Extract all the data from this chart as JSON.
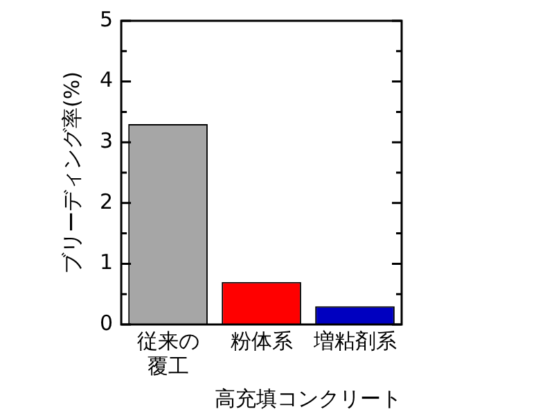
{
  "chart_data": {
    "type": "bar",
    "ylabel": "ブリーディング率(%)",
    "xlabel": "高充填コンクリート",
    "categories": [
      "従来の覆工",
      "粉体系",
      "増粘剤系"
    ],
    "values": [
      3.3,
      0.7,
      0.3
    ],
    "colors": [
      "#a6a6a6",
      "#ff0000",
      "#0000c0"
    ],
    "ylim": [
      0,
      5
    ],
    "yticks": [
      0,
      {
        "value": 0.5,
        "label": null
      },
      1,
      {
        "value": 1.5,
        "label": null
      },
      2,
      {
        "value": 2.5,
        "label": null
      },
      3,
      {
        "value": 3.5,
        "label": null
      },
      4,
      {
        "value": 4.5,
        "label": null
      },
      5
    ],
    "grid": false,
    "legend": false
  }
}
